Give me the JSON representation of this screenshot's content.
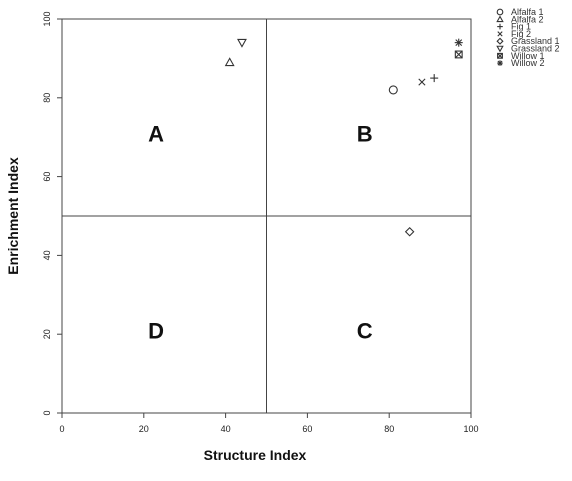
{
  "chart_data": {
    "type": "scatter",
    "xlabel": "Structure Index",
    "ylabel": "Enrichment Index",
    "xlim": [
      0,
      100
    ],
    "ylim": [
      0,
      100
    ],
    "xticks": [
      0,
      20,
      40,
      60,
      80,
      100
    ],
    "yticks": [
      0,
      20,
      40,
      60,
      80,
      100
    ],
    "grid": false,
    "legend_position": "top-right, outside plot",
    "reference_lines": {
      "x": 50,
      "y": 50
    },
    "quadrant_labels": [
      {
        "text": "A",
        "x": 23,
        "y": 71
      },
      {
        "text": "B",
        "x": 74,
        "y": 71
      },
      {
        "text": "C",
        "x": 74,
        "y": 21
      },
      {
        "text": "D",
        "x": 23,
        "y": 21
      }
    ],
    "series": [
      {
        "name": "Alfalfa 1",
        "marker": "circle",
        "points": [
          {
            "x": 81,
            "y": 82
          }
        ]
      },
      {
        "name": "Alfalfa 2",
        "marker": "triangle-up",
        "points": [
          {
            "x": 41,
            "y": 89
          }
        ]
      },
      {
        "name": "Fig 1",
        "marker": "plus",
        "points": [
          {
            "x": 91,
            "y": 85
          }
        ]
      },
      {
        "name": "Fig 2",
        "marker": "cross",
        "points": [
          {
            "x": 88,
            "y": 84
          }
        ]
      },
      {
        "name": "Grassland 1",
        "marker": "diamond",
        "points": [
          {
            "x": 85,
            "y": 46
          }
        ]
      },
      {
        "name": "Grassland 2",
        "marker": "triangle-down",
        "points": [
          {
            "x": 44,
            "y": 94
          }
        ]
      },
      {
        "name": "Willow 1",
        "marker": "boxed-cross",
        "points": [
          {
            "x": 97,
            "y": 91
          }
        ]
      },
      {
        "name": "Willow 2",
        "marker": "asterisk",
        "points": [
          {
            "x": 97,
            "y": 94
          }
        ]
      }
    ],
    "colors": {
      "marks": "#333333",
      "axis": "#444444"
    }
  }
}
